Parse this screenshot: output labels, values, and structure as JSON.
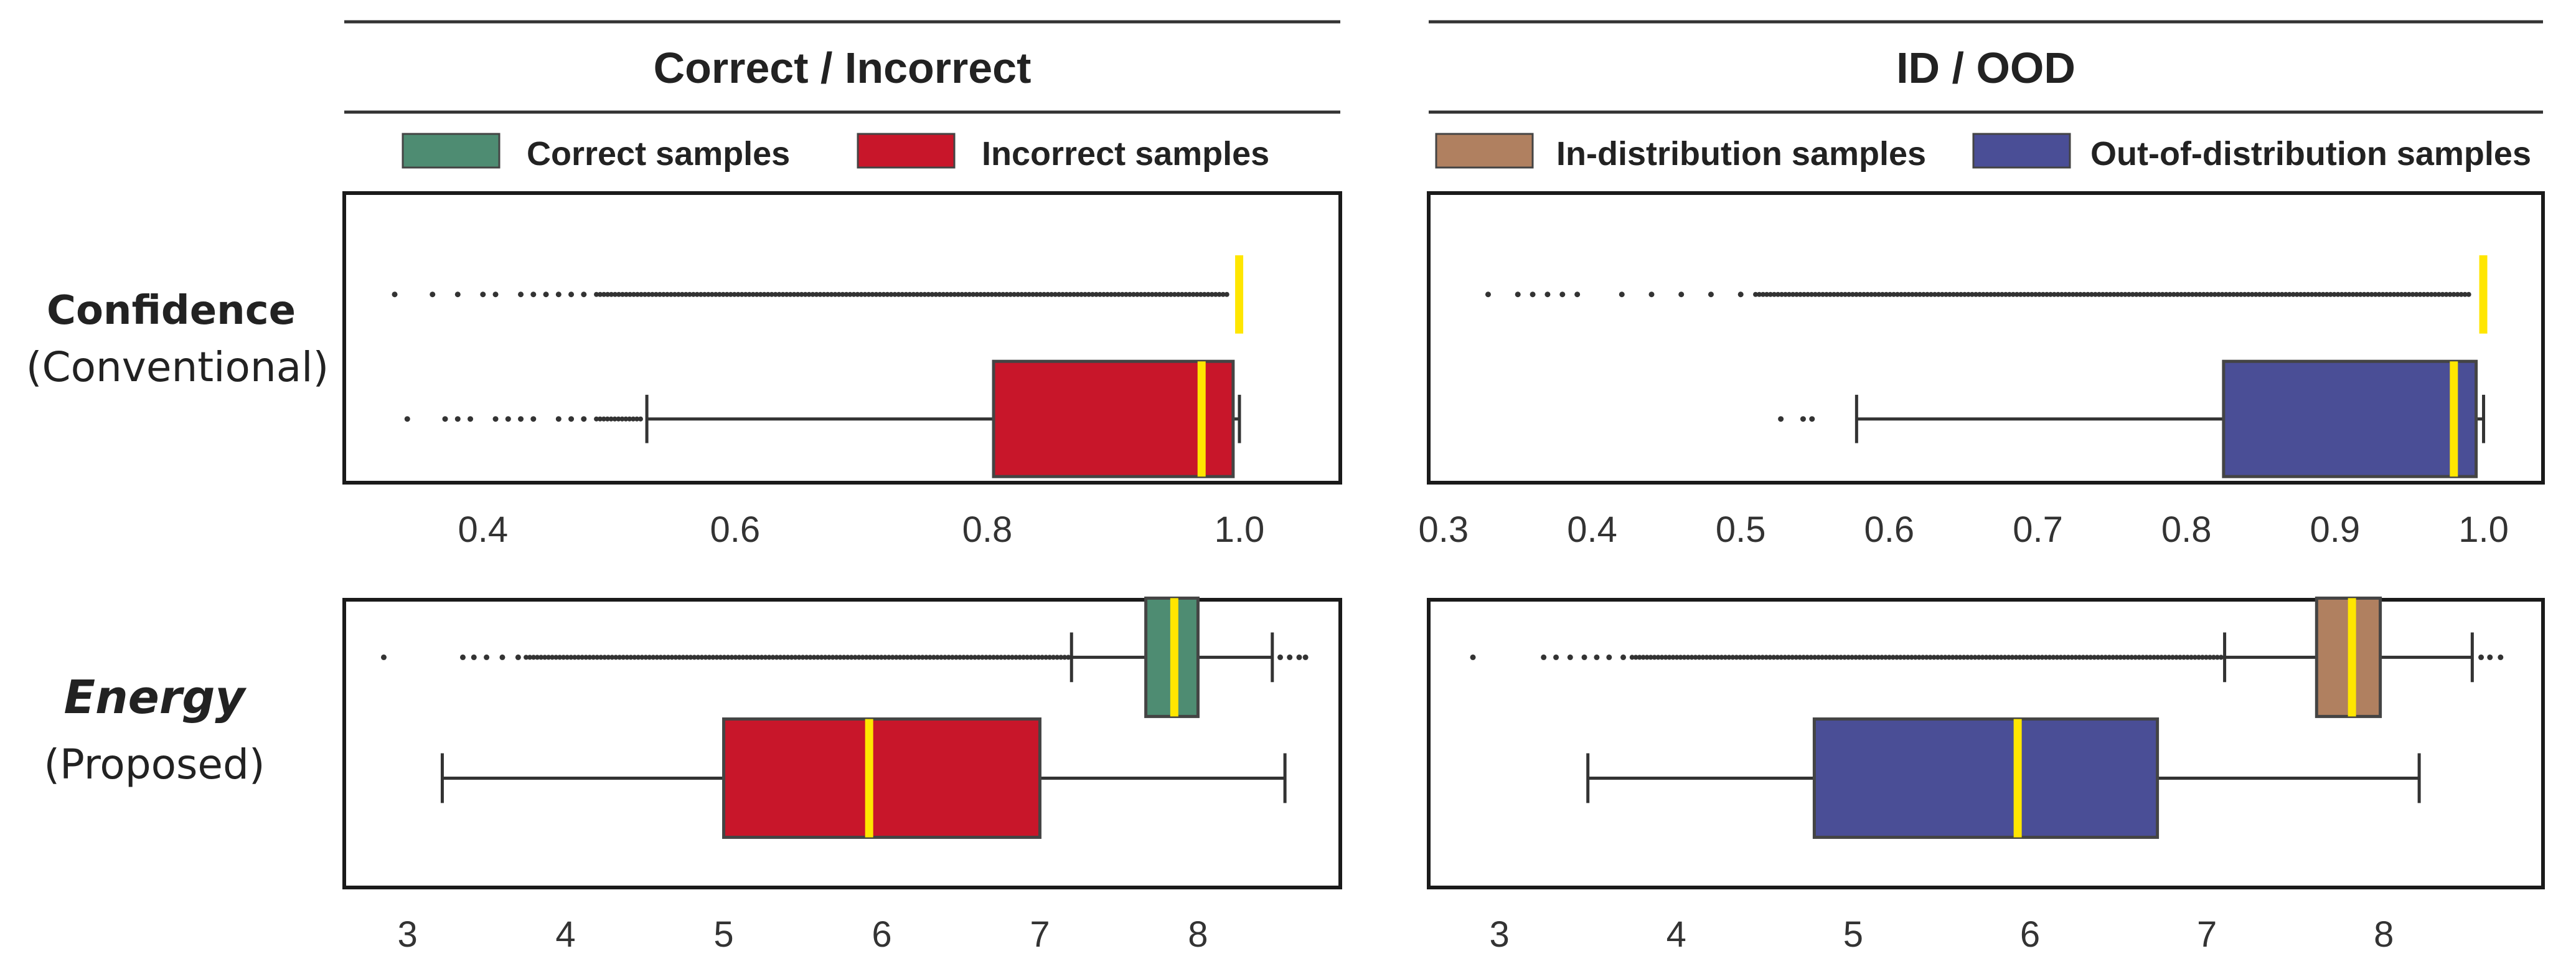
{
  "columns": [
    {
      "header": "Correct / Incorrect",
      "legend": [
        {
          "label": "Correct samples",
          "color": "#4e8c72"
        },
        {
          "label": "Incorrect samples",
          "color": "#c8162a"
        }
      ]
    },
    {
      "header": "ID / OOD",
      "legend": [
        {
          "label": "In-distribution samples",
          "color": "#b08060"
        },
        {
          "label": "Out-of-distribution samples",
          "color": "#4a4e96"
        }
      ]
    }
  ],
  "rows": [
    {
      "title": "Confidence",
      "subtitle": "(Conventional)"
    },
    {
      "title": "Energy",
      "subtitle": "(Proposed)"
    }
  ],
  "chart_data": [
    {
      "type": "boxplot",
      "title": "Correct / Incorrect",
      "row": "Confidence (Conventional)",
      "xlim": [
        0.29,
        1.08
      ],
      "ticks": [
        0.4,
        0.6,
        0.8,
        1.0
      ],
      "tick_labels": [
        "0.4",
        "0.6",
        "0.8",
        "1.0"
      ],
      "median_color": "#ffe600",
      "series": [
        {
          "name": "Correct samples",
          "color": "#4e8c72",
          "stats": {
            "whisker_low": 0.999,
            "q1": 0.9995,
            "median": 0.9998,
            "q3": 0.9999,
            "whisker_high": 1.0
          },
          "outliers": [
            0.33,
            0.36,
            0.38,
            0.4,
            0.41,
            0.43,
            0.44,
            0.45,
            0.46,
            0.47,
            0.48
          ],
          "outlier_range": [
            0.49,
            0.99
          ]
        },
        {
          "name": "Incorrect samples",
          "color": "#c8162a",
          "stats": {
            "whisker_low": 0.53,
            "q1": 0.805,
            "median": 0.97,
            "q3": 0.995,
            "whisker_high": 1.0
          },
          "outliers": [
            0.34,
            0.37,
            0.38,
            0.39,
            0.41,
            0.42,
            0.43,
            0.44,
            0.46,
            0.47,
            0.48
          ],
          "outlier_range": [
            0.49,
            0.525
          ]
        }
      ]
    },
    {
      "type": "boxplot",
      "title": "ID / OOD",
      "row": "Confidence (Conventional)",
      "xlim": [
        0.29,
        1.04
      ],
      "ticks": [
        0.3,
        0.4,
        0.5,
        0.6,
        0.7,
        0.8,
        0.9,
        1.0
      ],
      "tick_labels": [
        "0.3",
        "0.4",
        "0.5",
        "0.6",
        "0.7",
        "0.8",
        "0.9",
        "1.0"
      ],
      "median_color": "#ffe600",
      "series": [
        {
          "name": "In-distribution samples",
          "color": "#b08060",
          "stats": {
            "whisker_low": 0.999,
            "q1": 0.9995,
            "median": 0.9998,
            "q3": 0.9999,
            "whisker_high": 1.0
          },
          "outliers": [
            0.33,
            0.35,
            0.36,
            0.37,
            0.38,
            0.39,
            0.42,
            0.44,
            0.46,
            0.48,
            0.5
          ],
          "outlier_range": [
            0.51,
            0.99
          ]
        },
        {
          "name": "Out-of-distribution samples",
          "color": "#4a4e96",
          "stats": {
            "whisker_low": 0.578,
            "q1": 0.825,
            "median": 0.98,
            "q3": 0.995,
            "whisker_high": 1.0
          },
          "outliers": [
            0.527,
            0.542,
            0.548
          ],
          "outlier_range": []
        }
      ]
    },
    {
      "type": "boxplot",
      "title": "Correct / Incorrect",
      "row": "Energy (Proposed)",
      "xlim": [
        2.6,
        8.9
      ],
      "ticks": [
        3,
        4,
        5,
        6,
        7,
        8
      ],
      "tick_labels": [
        "3",
        "4",
        "5",
        "6",
        "7",
        "8"
      ],
      "median_color": "#ffe600",
      "series": [
        {
          "name": "Correct samples",
          "color": "#4e8c72",
          "stats": {
            "whisker_low": 7.2,
            "q1": 7.67,
            "median": 7.85,
            "q3": 8.0,
            "whisker_high": 8.47
          },
          "outliers": [
            2.85,
            3.35,
            3.42,
            3.5,
            3.6,
            3.7,
            8.52,
            8.58,
            8.64,
            8.68
          ],
          "outlier_range": [
            3.75,
            7.18
          ]
        },
        {
          "name": "Incorrect samples",
          "color": "#c8162a",
          "stats": {
            "whisker_low": 3.22,
            "q1": 5.0,
            "median": 5.92,
            "q3": 7.0,
            "whisker_high": 8.55
          },
          "outliers": [],
          "outlier_range": []
        }
      ]
    },
    {
      "type": "boxplot",
      "title": "ID / OOD",
      "row": "Energy (Proposed)",
      "xlim": [
        2.6,
        8.9
      ],
      "ticks": [
        3,
        4,
        5,
        6,
        7,
        8
      ],
      "tick_labels": [
        "3",
        "4",
        "5",
        "6",
        "7",
        "8"
      ],
      "median_color": "#ffe600",
      "series": [
        {
          "name": "In-distribution samples",
          "color": "#b08060",
          "stats": {
            "whisker_low": 7.1,
            "q1": 7.62,
            "median": 7.82,
            "q3": 7.98,
            "whisker_high": 8.5
          },
          "outliers": [
            2.85,
            3.25,
            3.32,
            3.4,
            3.48,
            3.55,
            3.62,
            3.7,
            8.55,
            8.6,
            8.66
          ],
          "outlier_range": [
            3.75,
            7.08
          ]
        },
        {
          "name": "Out-of-distribution samples",
          "color": "#4a4e96",
          "stats": {
            "whisker_low": 3.5,
            "q1": 4.78,
            "median": 5.93,
            "q3": 6.72,
            "whisker_high": 8.2
          },
          "outliers": [],
          "outlier_range": []
        }
      ]
    }
  ]
}
